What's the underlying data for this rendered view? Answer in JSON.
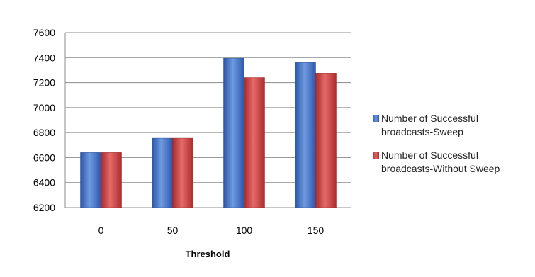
{
  "chart_data": {
    "type": "bar",
    "categories": [
      "0",
      "50",
      "100",
      "150"
    ],
    "series": [
      {
        "name": "Number of Successful broadcasts-Sweep",
        "values": [
          6640,
          6755,
          7395,
          7360
        ],
        "color": "#3a6fc4"
      },
      {
        "name": "Number of Successful broadcasts-Without Sweep",
        "values": [
          6640,
          6755,
          7240,
          7275
        ],
        "color": "#c83a3a"
      }
    ],
    "title": "",
    "xlabel": "Threshold",
    "ylabel": "",
    "ylim": [
      6200,
      7600
    ],
    "yticks": [
      "6200",
      "6400",
      "6600",
      "6800",
      "7000",
      "7200",
      "7400",
      "7600"
    ],
    "grid": true,
    "legend": "right"
  }
}
